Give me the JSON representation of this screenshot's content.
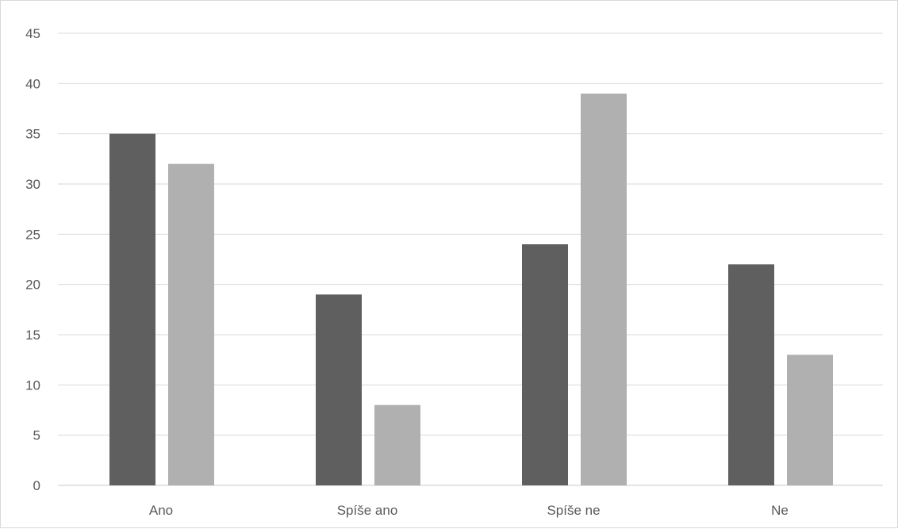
{
  "chart_data": {
    "type": "bar",
    "title": "",
    "xlabel": "",
    "ylabel": "",
    "categories": [
      "Ano",
      "Spíše ano",
      "Spíše ne",
      "Ne"
    ],
    "series": [
      {
        "color": "#5f5f5f",
        "values": [
          35,
          19,
          24,
          22
        ]
      },
      {
        "color": "#b0b0b0",
        "values": [
          32,
          8,
          39,
          13
        ]
      }
    ],
    "ylim": [
      0,
      45
    ],
    "ytick_step": 5,
    "yticks": [
      "0",
      "5",
      "10",
      "15",
      "20",
      "25",
      "30",
      "35",
      "40",
      "45"
    ],
    "grid": true,
    "legend": "none"
  }
}
